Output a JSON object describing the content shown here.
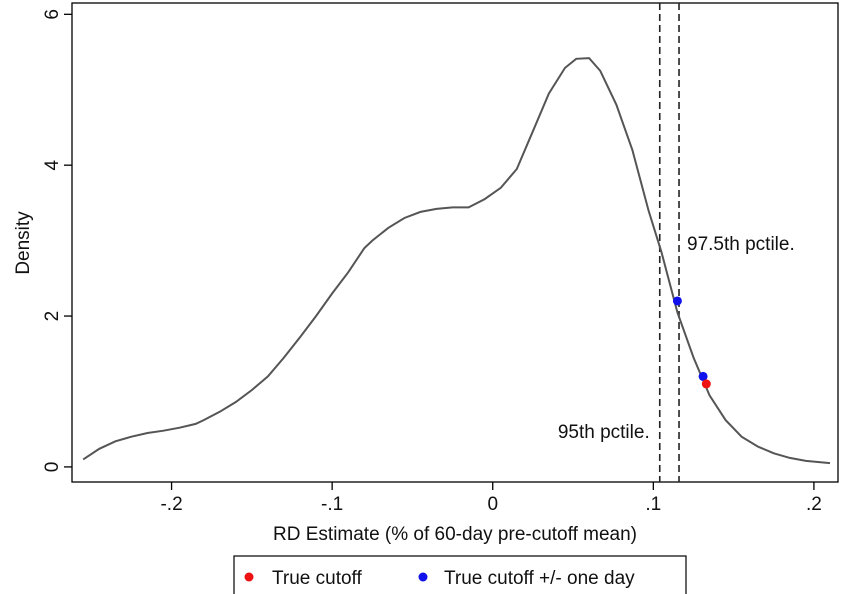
{
  "chart_data": {
    "type": "line",
    "title": "",
    "xlabel": "RD Estimate (% of 60-day pre-cutoff mean)",
    "ylabel": "Density",
    "xlim": [
      -0.262,
      0.215
    ],
    "ylim": [
      -0.2,
      6.15
    ],
    "x_ticks": [
      {
        "value": -0.2,
        "label": "-.2"
      },
      {
        "value": -0.1,
        "label": "-.1"
      },
      {
        "value": 0,
        "label": "0"
      },
      {
        "value": 0.1,
        "label": ".1"
      },
      {
        "value": 0.2,
        "label": ".2"
      }
    ],
    "y_ticks": [
      {
        "value": 0,
        "label": "0"
      },
      {
        "value": 2,
        "label": "2"
      },
      {
        "value": 4,
        "label": "4"
      },
      {
        "value": 6,
        "label": "6"
      }
    ],
    "grid": false,
    "series": [
      {
        "color": "#555555",
        "x": [
          -0.255,
          -0.245,
          -0.235,
          -0.225,
          -0.215,
          -0.205,
          -0.195,
          -0.185,
          -0.18,
          -0.17,
          -0.16,
          -0.15,
          -0.14,
          -0.13,
          -0.12,
          -0.11,
          -0.1,
          -0.09,
          -0.08,
          -0.075,
          -0.065,
          -0.055,
          -0.045,
          -0.035,
          -0.025,
          -0.015,
          -0.005,
          0.005,
          0.015,
          0.025,
          0.035,
          0.045,
          0.052,
          0.06,
          0.067,
          0.077,
          0.087,
          0.097,
          0.105,
          0.115,
          0.125,
          0.135,
          0.145,
          0.155,
          0.165,
          0.175,
          0.185,
          0.195,
          0.21
        ],
        "y": [
          0.1,
          0.24,
          0.34,
          0.4,
          0.45,
          0.48,
          0.52,
          0.57,
          0.62,
          0.73,
          0.86,
          1.02,
          1.2,
          1.45,
          1.72,
          2.0,
          2.3,
          2.58,
          2.9,
          3.0,
          3.17,
          3.3,
          3.38,
          3.42,
          3.44,
          3.44,
          3.55,
          3.7,
          3.95,
          4.45,
          4.95,
          5.29,
          5.41,
          5.42,
          5.25,
          4.8,
          4.2,
          3.4,
          2.85,
          2.05,
          1.45,
          0.95,
          0.62,
          0.4,
          0.27,
          0.18,
          0.12,
          0.08,
          0.05
        ]
      }
    ],
    "reference_lines": [
      {
        "x": 0.104,
        "label": "95th pctile.",
        "style": "dashed"
      },
      {
        "x": 0.116,
        "label": "97.5th pctile.",
        "style": "dashed"
      }
    ],
    "points": [
      {
        "x": 0.115,
        "y": 2.2,
        "series": "blue"
      },
      {
        "x": 0.131,
        "y": 1.2,
        "series": "blue"
      },
      {
        "x": 0.133,
        "y": 1.1,
        "series": "red"
      }
    ],
    "legend": {
      "placement": "bottom",
      "entries": [
        {
          "key": "red",
          "label": "True cutoff",
          "color": "#ee1111"
        },
        {
          "key": "blue",
          "label": "True cutoff +/- one day",
          "color": "#1111ee"
        }
      ]
    }
  }
}
